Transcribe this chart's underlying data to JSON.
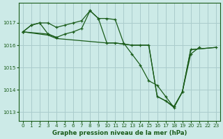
{
  "background_color": "#cceae7",
  "grid_color": "#aacccc",
  "line_color": "#1a5c1a",
  "title": "Graphe pression niveau de la mer (hPa)",
  "xlim": [
    -0.5,
    23.5
  ],
  "ylim": [
    1012.6,
    1017.9
  ],
  "yticks": [
    1013,
    1014,
    1015,
    1016,
    1017
  ],
  "xticks": [
    0,
    1,
    2,
    3,
    4,
    5,
    6,
    7,
    8,
    9,
    10,
    11,
    12,
    13,
    14,
    15,
    16,
    17,
    18,
    19,
    20,
    21,
    22,
    23
  ],
  "line1_x": [
    0,
    1,
    2,
    3,
    4,
    5,
    6,
    7,
    8,
    9,
    10,
    11,
    12,
    13,
    14,
    15,
    16,
    17,
    18,
    19,
    20,
    21
  ],
  "line1_y": [
    1016.6,
    1016.9,
    1017.0,
    1017.0,
    1016.8,
    1016.9,
    1017.0,
    1017.1,
    1017.55,
    1017.2,
    1017.2,
    1017.15,
    1016.1,
    1015.6,
    1015.1,
    1014.4,
    1014.2,
    1013.7,
    1013.2,
    1013.9,
    1015.6,
    1015.9
  ],
  "line2_x": [
    0,
    3,
    4,
    5,
    6,
    7,
    8,
    9,
    10,
    11,
    12,
    13,
    14,
    15,
    16,
    17,
    18,
    19,
    20,
    23
  ],
  "line2_y": [
    1016.6,
    1016.5,
    1016.35,
    1016.5,
    1016.6,
    1016.75,
    1017.55,
    1017.2,
    1016.1,
    1016.1,
    1016.05,
    1016.0,
    1016.0,
    1016.0,
    1013.7,
    1013.5,
    1013.25,
    1013.9,
    1015.8,
    1015.9
  ],
  "line3_x": [
    0,
    3,
    4,
    10,
    11,
    12,
    13,
    14,
    15,
    16,
    17,
    18,
    19,
    20,
    23
  ],
  "line3_y": [
    1016.6,
    1016.45,
    1016.3,
    1016.1,
    1016.1,
    1016.05,
    1016.0,
    1016.0,
    1016.0,
    1013.7,
    1013.5,
    1013.2,
    1013.9,
    1015.8,
    1015.9
  ],
  "line4_x": [
    0,
    1,
    2,
    3,
    4
  ],
  "line4_y": [
    1016.6,
    1016.9,
    1017.0,
    1016.5,
    1016.35
  ]
}
